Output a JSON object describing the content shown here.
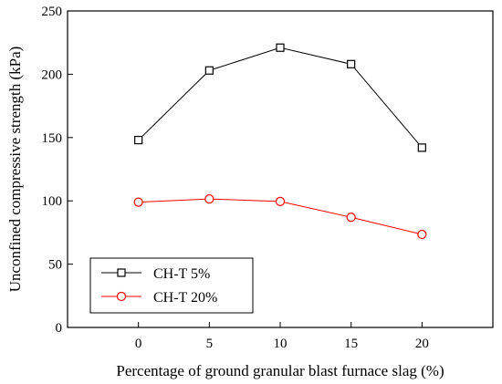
{
  "chart_data": {
    "type": "line",
    "title": "",
    "xlabel": "Percentage of ground granular blast furnace slag (%)",
    "ylabel": "Unconfined compressive strength (kPa)",
    "xlim": [
      -5,
      25
    ],
    "ylim": [
      0,
      250
    ],
    "x_ticks": [
      0,
      5,
      10,
      15,
      20
    ],
    "y_ticks": [
      0,
      50,
      100,
      150,
      200,
      250
    ],
    "grid": false,
    "legend_position": "bottom-left",
    "series": [
      {
        "name": "CH-T 5%",
        "color": "#000000",
        "marker": "square",
        "x": [
          0,
          5,
          10,
          15,
          20
        ],
        "y": [
          148,
          203,
          221,
          208,
          142
        ]
      },
      {
        "name": "CH-T 20%",
        "color": "#ff0000",
        "marker": "circle",
        "x": [
          0,
          5,
          10,
          15,
          20
        ],
        "y": [
          99,
          101.5,
          99.5,
          87,
          73.5
        ]
      }
    ]
  }
}
